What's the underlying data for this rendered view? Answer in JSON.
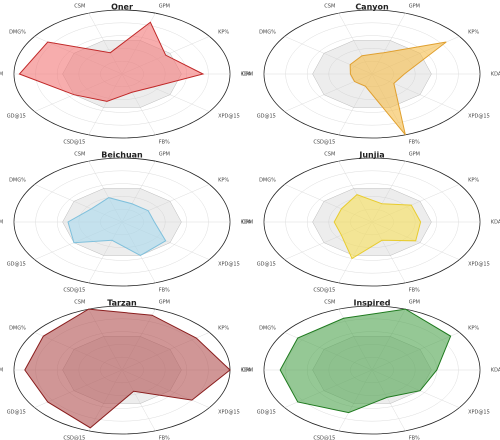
{
  "chart_data": [
    {
      "type": "radar",
      "title": "Oner",
      "axes": [
        "CSM",
        "GPM",
        "KP%",
        "KDA",
        "XPD@15",
        "FB%",
        "CSD@15",
        "GD@15",
        "DPM",
        "DMG%"
      ],
      "rlim": [
        0,
        1
      ],
      "rticks": [
        0.2,
        0.4,
        0.6,
        0.8,
        1.0
      ],
      "grid": true,
      "series": [
        {
          "color": "#cccccc",
          "values": [
            0.55,
            0.55,
            0.55,
            0.55,
            0.55,
            0.55,
            0.55,
            0.55,
            0.55,
            0.55
          ]
        },
        {
          "name": "Oner",
          "color": "#f27777",
          "edge": "#c02828",
          "values": [
            0.35,
            0.85,
            0.5,
            0.75,
            0.35,
            0.3,
            0.45,
            0.55,
            0.95,
            0.85
          ]
        }
      ]
    },
    {
      "type": "radar",
      "title": "Canyon",
      "axes": [
        "CSM",
        "GPM",
        "KP%",
        "KDA",
        "XPD@15",
        "FB%",
        "CSD@15",
        "GD@15",
        "DPM",
        "DMG%"
      ],
      "rlim": [
        0,
        1
      ],
      "rticks": [
        0.2,
        0.4,
        0.6,
        0.8,
        1.0
      ],
      "grid": true,
      "series": [
        {
          "color": "#cccccc",
          "values": [
            0.55,
            0.55,
            0.55,
            0.55,
            0.55,
            0.55,
            0.55,
            0.55,
            0.55,
            0.55
          ]
        },
        {
          "name": "Canyon",
          "color": "#f5bc4a",
          "edge": "#e0a030",
          "values": [
            0.3,
            0.35,
            0.85,
            0.3,
            0.25,
            1.0,
            0.2,
            0.2,
            0.2,
            0.25
          ]
        }
      ]
    },
    {
      "type": "radar",
      "title": "Beichuan",
      "axes": [
        "CSM",
        "GPM",
        "KP%",
        "KDA",
        "XPD@15",
        "FB%",
        "CSD@15",
        "GD@15",
        "DPM",
        "DMG%"
      ],
      "rlim": [
        0,
        1
      ],
      "rticks": [
        0.2,
        0.4,
        0.6,
        0.8,
        1.0
      ],
      "grid": true,
      "series": [
        {
          "color": "#cccccc",
          "values": [
            0.55,
            0.55,
            0.55,
            0.55,
            0.55,
            0.55,
            0.55,
            0.55,
            0.55,
            0.55
          ]
        },
        {
          "name": "Beichuan",
          "color": "#a9d8ec",
          "edge": "#7fc0dc",
          "values": [
            0.4,
            0.3,
            0.3,
            0.3,
            0.5,
            0.55,
            0.3,
            0.55,
            0.5,
            0.35
          ]
        }
      ]
    },
    {
      "type": "radar",
      "title": "Junjia",
      "axes": [
        "CSM",
        "GPM",
        "KP%",
        "KDA",
        "XPD@15",
        "FB%",
        "CSD@15",
        "GD@15",
        "DPM",
        "DMG%"
      ],
      "rlim": [
        0,
        1
      ],
      "rticks": [
        0.2,
        0.4,
        0.6,
        0.8,
        1.0
      ],
      "grid": true,
      "series": [
        {
          "color": "#cccccc",
          "values": [
            0.55,
            0.55,
            0.55,
            0.55,
            0.55,
            0.55,
            0.55,
            0.55,
            0.55,
            0.55
          ]
        },
        {
          "name": "Junjia",
          "color": "#f6e05a",
          "edge": "#e8cc30",
          "values": [
            0.45,
            0.3,
            0.45,
            0.45,
            0.5,
            0.3,
            0.6,
            0.35,
            0.35,
            0.35
          ]
        }
      ]
    },
    {
      "type": "radar",
      "title": "Tarzan",
      "axes": [
        "CSM",
        "GPM",
        "KP%",
        "KDA",
        "XPD@15",
        "FB%",
        "CSD@15",
        "GD@15",
        "DPM",
        "DMG%"
      ],
      "rlim": [
        0,
        1
      ],
      "rticks": [
        0.2,
        0.4,
        0.6,
        0.8,
        1.0
      ],
      "grid": true,
      "series": [
        {
          "color": "#cccccc",
          "values": [
            0.55,
            0.55,
            0.55,
            0.55,
            0.55,
            0.55,
            0.55,
            0.55,
            0.55,
            0.55
          ]
        },
        {
          "name": "Tarzan",
          "color": "#b05050",
          "edge": "#8a1e1e",
          "values": [
            1.0,
            0.9,
            0.85,
            1.0,
            0.8,
            0.35,
            0.95,
            0.85,
            0.9,
            0.9
          ]
        }
      ]
    },
    {
      "type": "radar",
      "title": "Inspired",
      "axes": [
        "CSM",
        "GPM",
        "KP%",
        "KDA",
        "XPD@15",
        "FB%",
        "CSD@15",
        "GD@15",
        "DPM",
        "DMG%"
      ],
      "rlim": [
        0,
        1
      ],
      "rticks": [
        0.2,
        0.4,
        0.6,
        0.8,
        1.0
      ],
      "grid": true,
      "series": [
        {
          "color": "#cccccc",
          "values": [
            0.55,
            0.55,
            0.55,
            0.55,
            0.55,
            0.55,
            0.55,
            0.55,
            0.55,
            0.55
          ]
        },
        {
          "name": "Inspired",
          "color": "#4fa34f",
          "edge": "#1f7a1f",
          "values": [
            0.85,
            1.0,
            0.9,
            0.6,
            0.55,
            0.45,
            0.7,
            0.85,
            0.85,
            0.85
          ]
        }
      ]
    }
  ]
}
